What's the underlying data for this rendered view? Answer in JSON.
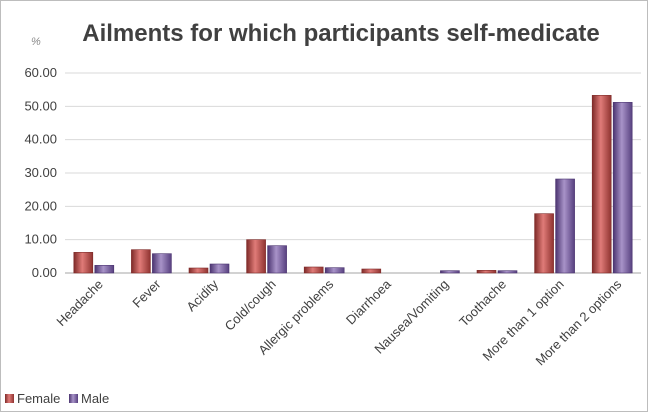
{
  "chart_data": {
    "type": "bar",
    "title": "Ailments for which participants self-medicate",
    "unit_label": "%",
    "categories": [
      "Headache",
      "Fever",
      "Acidity",
      "Cold/cough",
      "Allergic problems",
      "Diarrhoea",
      "Nausea/Vomiting",
      "Toothache",
      "More than 1 option",
      "More than 2 options"
    ],
    "series": [
      {
        "name": "Female",
        "color": "#c0504d",
        "values": [
          6.2,
          7.0,
          1.5,
          10.0,
          1.8,
          1.2,
          0.0,
          0.8,
          17.8,
          53.3
        ]
      },
      {
        "name": "Male",
        "color": "#8064a2",
        "values": [
          2.3,
          5.8,
          2.7,
          8.2,
          1.6,
          0.0,
          0.7,
          0.7,
          28.2,
          51.2
        ]
      }
    ],
    "y_ticks": [
      "0.00",
      "10.00",
      "20.00",
      "30.00",
      "40.00",
      "50.00",
      "60.00"
    ],
    "ylim": [
      0,
      60
    ],
    "grid": true,
    "legend_position": "bottom-left"
  }
}
